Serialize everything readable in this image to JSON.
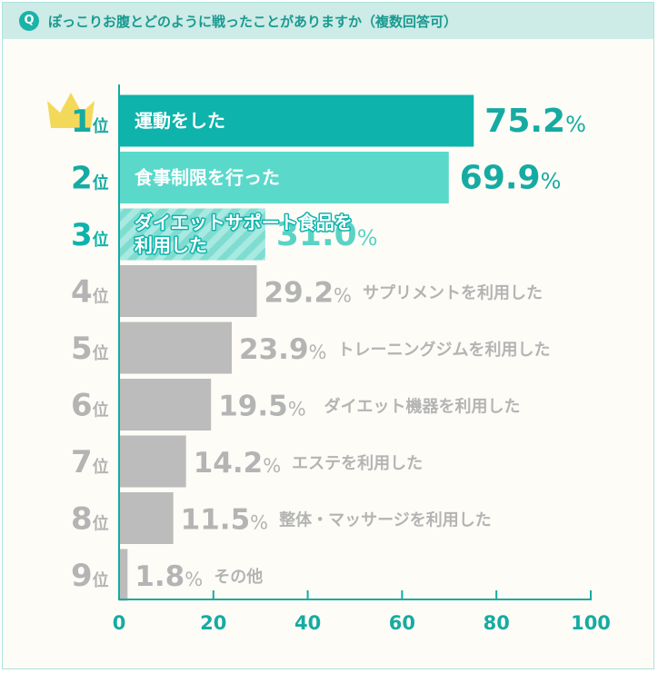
{
  "question": {
    "badge": "Q",
    "text": "ぽっこりお腹とどのように戦ったことがありますか（複数回答可）"
  },
  "colors": {
    "rank1": "#0eb3ab",
    "rank2": "#5ad9cb",
    "rank3": "#7fdcd1",
    "rank3_stripe": "#a8e9e1",
    "rank_other": "#bcbcbc",
    "text_rank_top": "#16aba2",
    "text_rank3": "#5ad3c5",
    "text_gray": "#b4b4b4",
    "axis": "#16aba2",
    "crown": "#f3d95a"
  },
  "chart_data": {
    "type": "bar",
    "orientation": "horizontal",
    "xlim": [
      0,
      100
    ],
    "xticks": [
      "0",
      "20",
      "40",
      "60",
      "80",
      "100"
    ],
    "percent_symbol": "%",
    "rank_suffix": "位",
    "crown_icon": "crown-icon",
    "items": [
      {
        "rank": "1",
        "label": "運動をした",
        "value": 75.2,
        "display": "75.2"
      },
      {
        "rank": "2",
        "label": "食事制限を行った",
        "value": 69.9,
        "display": "69.9"
      },
      {
        "rank": "3",
        "label": "ダイエットサポート食品を利用した",
        "label_lines": [
          "ダイエットサポート食品を",
          "利用した"
        ],
        "value": 31.0,
        "display": "31.0"
      },
      {
        "rank": "4",
        "label": "サプリメントを利用した",
        "value": 29.2,
        "display": "29.2"
      },
      {
        "rank": "5",
        "label": "トレーニングジムを利用した",
        "value": 23.9,
        "display": "23.9"
      },
      {
        "rank": "6",
        "label": "ダイエット機器を利用した",
        "value": 19.5,
        "display": "19.5"
      },
      {
        "rank": "7",
        "label": "エステを利用した",
        "value": 14.2,
        "display": "14.2"
      },
      {
        "rank": "8",
        "label": "整体・マッサージを利用した",
        "value": 11.5,
        "display": "11.5"
      },
      {
        "rank": "9",
        "label": "その他",
        "value": 1.8,
        "display": "1.8"
      }
    ]
  }
}
